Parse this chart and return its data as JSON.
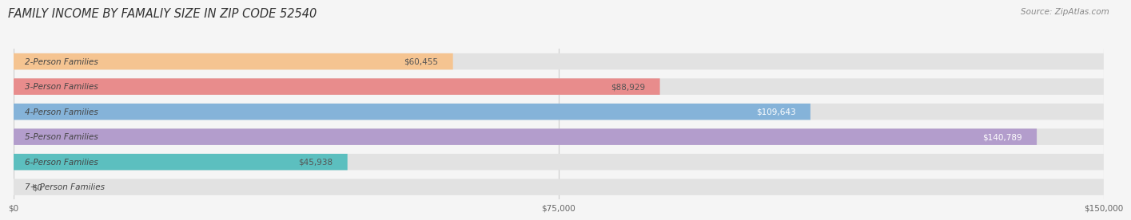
{
  "title": "FAMILY INCOME BY FAMALIY SIZE IN ZIP CODE 52540",
  "source": "Source: ZipAtlas.com",
  "categories": [
    "2-Person Families",
    "3-Person Families",
    "4-Person Families",
    "5-Person Families",
    "6-Person Families",
    "7+ Person Families"
  ],
  "values": [
    60455,
    88929,
    109643,
    140789,
    45938,
    0
  ],
  "bar_colors": [
    "#f5c491",
    "#e88c8c",
    "#85b3d9",
    "#b39dcc",
    "#5cbfbf",
    "#c5cce8"
  ],
  "label_colors": [
    "#555555",
    "#555555",
    "#ffffff",
    "#ffffff",
    "#555555",
    "#555555"
  ],
  "xlim": [
    0,
    150000
  ],
  "xtick_values": [
    0,
    75000,
    150000
  ],
  "xtick_labels": [
    "$0",
    "$75,000",
    "$150,000"
  ],
  "bar_height": 0.65,
  "background_color": "#f5f5f5",
  "bar_bg_color": "#e2e2e2",
  "value_labels": [
    "$60,455",
    "$88,929",
    "$109,643",
    "$140,789",
    "$45,938",
    "$0"
  ],
  "title_fontsize": 10.5,
  "label_fontsize": 7.5,
  "value_fontsize": 7.5,
  "source_fontsize": 7.5
}
